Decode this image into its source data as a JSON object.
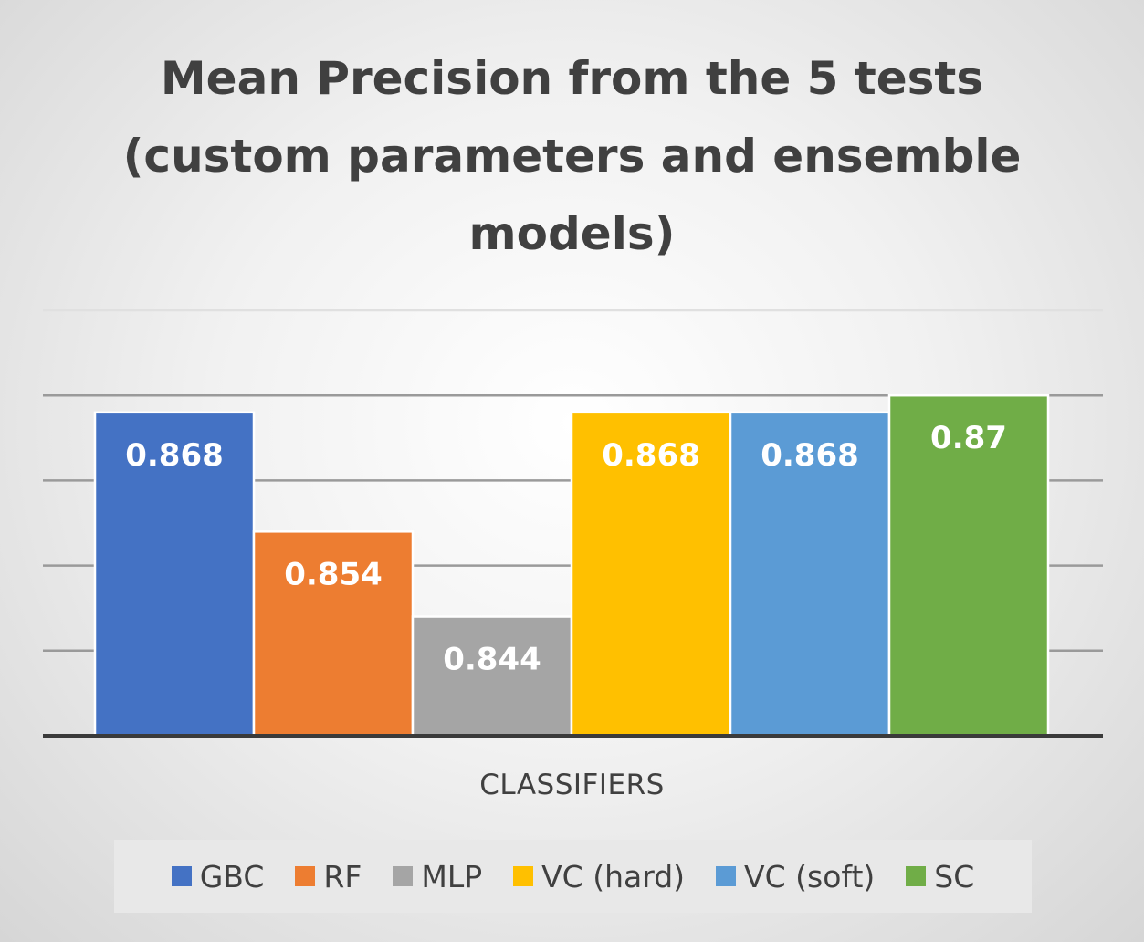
{
  "chart_data": {
    "type": "bar",
    "title": "Mean Precision from the 5 tests (custom parameters and ensemble models)",
    "xlabel": "CLASSIFIERS",
    "ylabel": "",
    "categories": [
      "GBC",
      "RF",
      "MLP",
      "VC (hard)",
      "VC (soft)",
      "SC"
    ],
    "values": [
      0.868,
      0.854,
      0.844,
      0.868,
      0.868,
      0.87
    ],
    "data_labels": [
      "0.868",
      "0.854",
      "0.844",
      "0.868",
      "0.868",
      "0.87"
    ],
    "colors": [
      "#4472c4",
      "#ed7d31",
      "#a5a5a5",
      "#ffc000",
      "#5b9bd5",
      "#70ad47"
    ],
    "ylim": [
      0.83,
      0.88
    ],
    "gridlines": true,
    "legend_position": "bottom"
  }
}
